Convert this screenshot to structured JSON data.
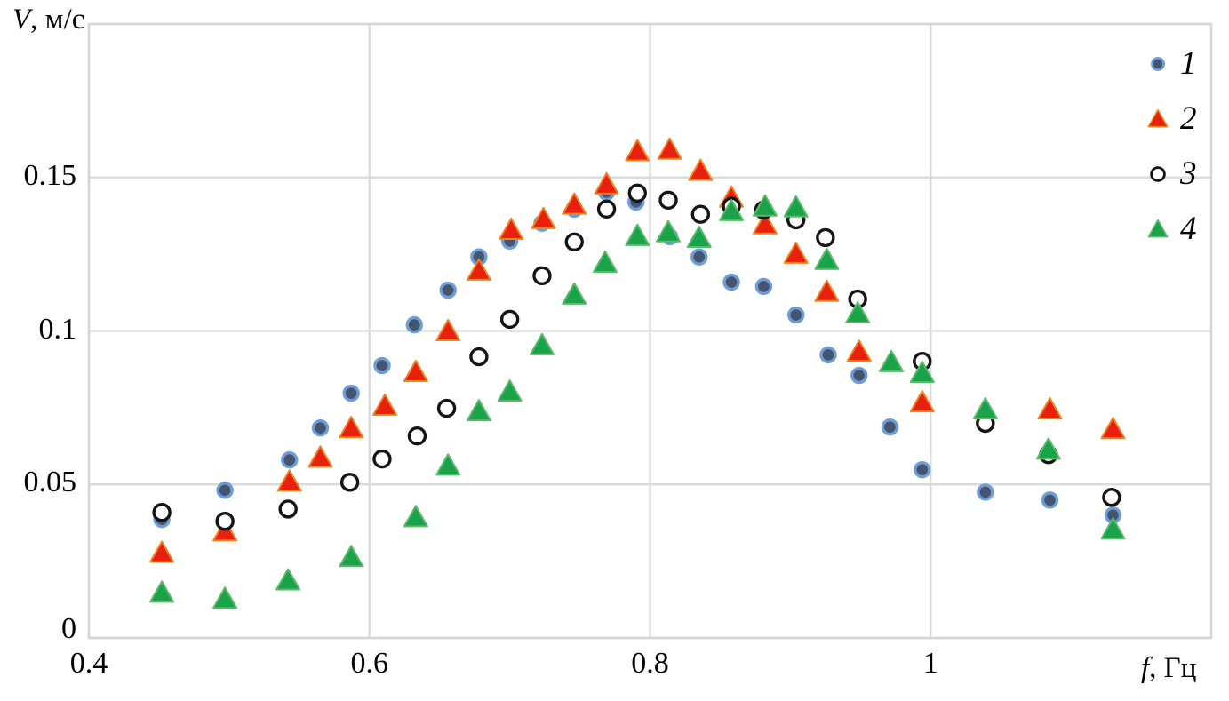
{
  "page": {
    "background": "#ffffff"
  },
  "chart_data": {
    "type": "scatter",
    "title": "",
    "ylabel_italic": "V",
    "ylabel_rest": ", м/с",
    "xlabel_italic": "f",
    "xlabel_rest": ", Гц",
    "grid": true,
    "legend_position": "top-right-inside",
    "x_axis": {
      "min": 0.4,
      "max": 1.2,
      "ticks": [
        0.4,
        0.6,
        0.8,
        1.0
      ],
      "tick_labels": [
        "0.4",
        "0.6",
        "0.8",
        "1"
      ]
    },
    "y_axis": {
      "min": 0,
      "max": 0.2,
      "ticks": [
        0,
        0.05,
        0.1,
        0.15
      ],
      "tick_labels": [
        "0",
        "0.05",
        "0.1",
        "0.15"
      ]
    },
    "colors": {
      "grid": "#DBDBDB",
      "border": "#D6D6D6",
      "text": "#000000"
    },
    "series": [
      {
        "name": "1",
        "marker": "circle",
        "fill": "#46556D",
        "stroke": "#6D9DD6",
        "points": [
          [
            0.452,
            0.0386
          ],
          [
            0.497,
            0.0481
          ],
          [
            0.543,
            0.058
          ],
          [
            0.565,
            0.0684
          ],
          [
            0.587,
            0.0797
          ],
          [
            0.609,
            0.0887
          ],
          [
            0.632,
            0.102
          ],
          [
            0.656,
            0.1133
          ],
          [
            0.678,
            0.1241
          ],
          [
            0.7,
            0.1293
          ],
          [
            0.723,
            0.1351
          ],
          [
            0.746,
            0.1397
          ],
          [
            0.769,
            0.1452
          ],
          [
            0.79,
            0.142
          ],
          [
            0.814,
            0.1307
          ],
          [
            0.835,
            0.1241
          ],
          [
            0.858,
            0.1159
          ],
          [
            0.881,
            0.1145
          ],
          [
            0.904,
            0.1052
          ],
          [
            0.927,
            0.0922
          ],
          [
            0.949,
            0.0855
          ],
          [
            0.971,
            0.0687
          ],
          [
            0.994,
            0.0548
          ],
          [
            1.039,
            0.0475
          ],
          [
            1.085,
            0.0449
          ],
          [
            1.13,
            0.04
          ]
        ]
      },
      {
        "name": "2",
        "marker": "triangle",
        "fill": "#E8200E",
        "stroke": "#F0821E",
        "points": [
          [
            0.452,
            0.0278
          ],
          [
            0.497,
            0.0348
          ],
          [
            0.543,
            0.051
          ],
          [
            0.565,
            0.0588
          ],
          [
            0.587,
            0.0684
          ],
          [
            0.611,
            0.0757
          ],
          [
            0.633,
            0.0867
          ],
          [
            0.656,
            0.1
          ],
          [
            0.678,
            0.1197
          ],
          [
            0.701,
            0.133
          ],
          [
            0.724,
            0.1365
          ],
          [
            0.746,
            0.1412
          ],
          [
            0.769,
            0.1478
          ],
          [
            0.791,
            0.1586
          ],
          [
            0.814,
            0.1591
          ],
          [
            0.836,
            0.1522
          ],
          [
            0.858,
            0.1435
          ],
          [
            0.882,
            0.1348
          ],
          [
            0.904,
            0.1252
          ],
          [
            0.926,
            0.1128
          ],
          [
            0.949,
            0.0933
          ],
          [
            0.994,
            0.0768
          ],
          [
            1.085,
            0.0745
          ],
          [
            1.13,
            0.0681
          ]
        ]
      },
      {
        "name": "3",
        "marker": "open-circle",
        "fill": "#FFFFFF",
        "stroke": "#141414",
        "points": [
          [
            0.452,
            0.0409
          ],
          [
            0.497,
            0.038
          ],
          [
            0.542,
            0.042
          ],
          [
            0.586,
            0.0507
          ],
          [
            0.609,
            0.0583
          ],
          [
            0.634,
            0.0658
          ],
          [
            0.655,
            0.0748
          ],
          [
            0.678,
            0.0916
          ],
          [
            0.7,
            0.1038
          ],
          [
            0.723,
            0.118
          ],
          [
            0.746,
            0.129
          ],
          [
            0.769,
            0.1397
          ],
          [
            0.791,
            0.1449
          ],
          [
            0.813,
            0.1426
          ],
          [
            0.836,
            0.138
          ],
          [
            0.858,
            0.1406
          ],
          [
            0.881,
            0.1394
          ],
          [
            0.904,
            0.1362
          ],
          [
            0.925,
            0.1304
          ],
          [
            0.948,
            0.1104
          ],
          [
            0.994,
            0.0901
          ],
          [
            1.039,
            0.0699
          ],
          [
            1.084,
            0.0597
          ],
          [
            1.129,
            0.0458
          ]
        ]
      },
      {
        "name": "4",
        "marker": "triangle",
        "fill": "#1AA34A",
        "stroke": "#5BB96A",
        "points": [
          [
            0.452,
            0.0148
          ],
          [
            0.497,
            0.0128
          ],
          [
            0.542,
            0.0188
          ],
          [
            0.587,
            0.0264
          ],
          [
            0.633,
            0.0394
          ],
          [
            0.656,
            0.0562
          ],
          [
            0.678,
            0.0739
          ],
          [
            0.7,
            0.0803
          ],
          [
            0.723,
            0.0954
          ],
          [
            0.746,
            0.1119
          ],
          [
            0.768,
            0.1223
          ],
          [
            0.791,
            0.131
          ],
          [
            0.813,
            0.1322
          ],
          [
            0.835,
            0.1304
          ],
          [
            0.858,
            0.1391
          ],
          [
            0.882,
            0.1406
          ],
          [
            0.904,
            0.1403
          ],
          [
            0.926,
            0.1232
          ],
          [
            0.948,
            0.1058
          ],
          [
            0.972,
            0.0899
          ],
          [
            0.994,
            0.0864
          ],
          [
            1.039,
            0.0745
          ],
          [
            1.084,
            0.0614
          ],
          [
            1.13,
            0.0354
          ]
        ]
      }
    ]
  }
}
